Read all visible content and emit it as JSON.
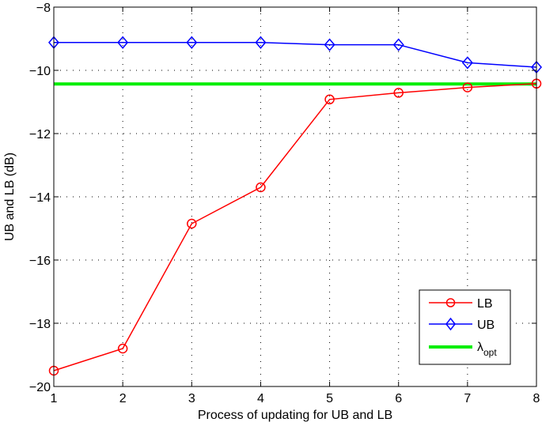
{
  "chart_data": {
    "type": "line",
    "title": "",
    "xlabel": "Process of updating for UB and LB",
    "ylabel": "UB and LB (dB)",
    "x": [
      1,
      2,
      3,
      4,
      5,
      6,
      7,
      8
    ],
    "xlim": [
      1,
      8
    ],
    "ylim": [
      -20,
      -8
    ],
    "xticks": [
      1,
      2,
      3,
      4,
      5,
      6,
      7,
      8
    ],
    "yticks": [
      -20,
      -18,
      -16,
      -14,
      -12,
      -10,
      -8
    ],
    "ytick_labels": [
      "−20",
      "−18",
      "−16",
      "−14",
      "−12",
      "−10",
      "−8"
    ],
    "grid": true,
    "legend_position": "lower right",
    "series": [
      {
        "name": "LB",
        "color": "#ff0000",
        "marker": "circle",
        "values": [
          -19.5,
          -18.8,
          -14.85,
          -13.7,
          -10.92,
          -10.71,
          -10.54,
          -10.42
        ]
      },
      {
        "name": "UB",
        "color": "#0000ff",
        "marker": "diamond",
        "values": [
          -9.12,
          -9.12,
          -9.12,
          -9.12,
          -9.19,
          -9.19,
          -9.76,
          -9.9
        ]
      },
      {
        "name": "λ_opt",
        "color": "#00ee00",
        "marker": "none",
        "values": [
          -10.43,
          -10.43,
          -10.43,
          -10.43,
          -10.43,
          -10.43,
          -10.43,
          -10.43
        ]
      }
    ]
  },
  "legend": {
    "items": [
      {
        "label": "LB",
        "sub": ""
      },
      {
        "label": "UB",
        "sub": ""
      },
      {
        "label": "λ",
        "sub": "opt"
      }
    ]
  }
}
